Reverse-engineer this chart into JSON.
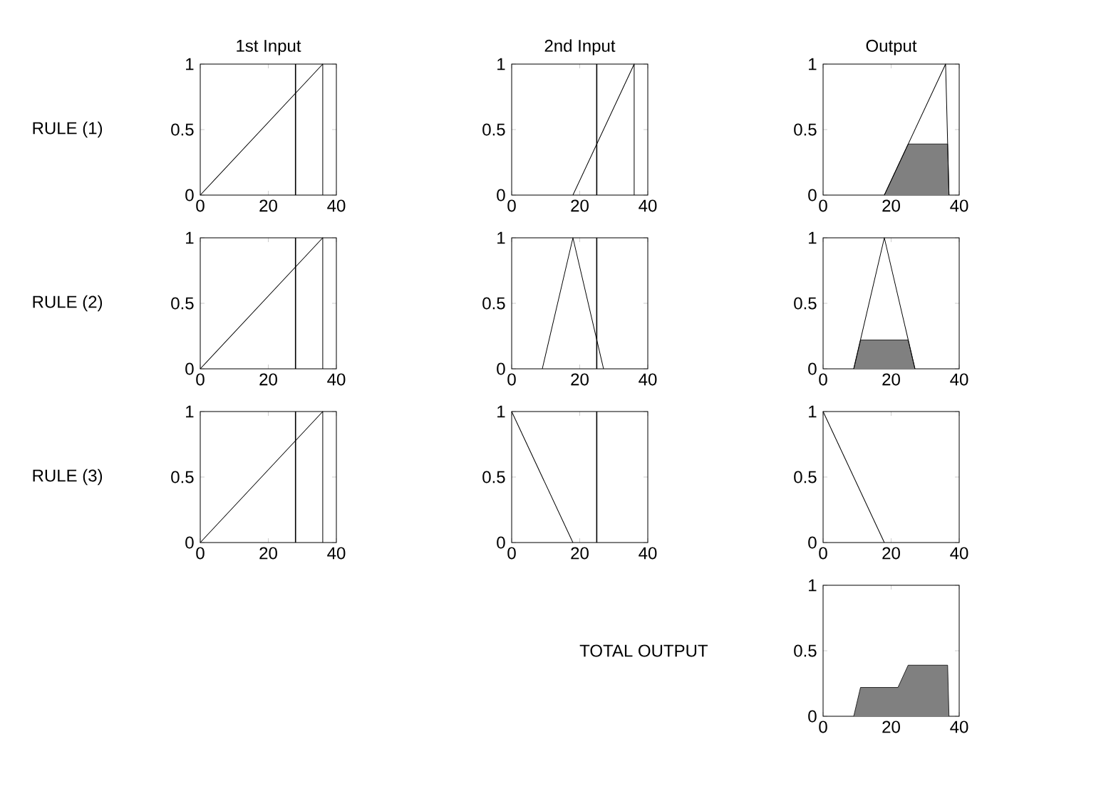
{
  "chart_data": [
    {
      "type": "line",
      "title": "1st Input",
      "annotations": [
        "RULE (1)"
      ],
      "xlim": [
        0,
        40
      ],
      "ylim": [
        0,
        1
      ],
      "xticks": [
        0,
        20,
        40
      ],
      "yticks": [
        0,
        0.5,
        1
      ],
      "series": [
        {
          "x": [
            0,
            36,
            36
          ],
          "values": [
            0,
            1,
            0
          ],
          "color": "#000000"
        }
      ],
      "ref_lines": [
        {
          "axis": "x",
          "value": 28,
          "color": "#000000"
        }
      ]
    },
    {
      "type": "line",
      "title": "2nd Input",
      "xlim": [
        0,
        40
      ],
      "ylim": [
        0,
        1
      ],
      "xticks": [
        0,
        20,
        40
      ],
      "yticks": [
        0,
        0.5,
        1
      ],
      "series": [
        {
          "x": [
            18,
            36,
            36
          ],
          "values": [
            0,
            1,
            0
          ],
          "color": "#000000"
        }
      ],
      "ref_lines": [
        {
          "axis": "x",
          "value": 25,
          "color": "#000000"
        }
      ]
    },
    {
      "type": "line",
      "title": "Output",
      "xlim": [
        0,
        40
      ],
      "ylim": [
        0,
        1
      ],
      "xticks": [
        0,
        20,
        40
      ],
      "yticks": [
        0,
        0.5,
        1
      ],
      "series": [
        {
          "type": "area",
          "x": [
            18,
            25,
            36.6,
            37
          ],
          "values": [
            0,
            0.39,
            0.39,
            0
          ],
          "color": "#808080"
        },
        {
          "x": [
            18,
            36,
            37
          ],
          "values": [
            0,
            1,
            0
          ],
          "color": "#000000"
        }
      ]
    },
    {
      "type": "line",
      "annotations": [
        "RULE (2)"
      ],
      "xlim": [
        0,
        40
      ],
      "ylim": [
        0,
        1
      ],
      "xticks": [
        0,
        20,
        40
      ],
      "yticks": [
        0,
        0.5,
        1
      ],
      "series": [
        {
          "x": [
            0,
            36,
            36
          ],
          "values": [
            0,
            1,
            0
          ],
          "color": "#000000"
        }
      ],
      "ref_lines": [
        {
          "axis": "x",
          "value": 28,
          "color": "#000000"
        }
      ]
    },
    {
      "type": "line",
      "xlim": [
        0,
        40
      ],
      "ylim": [
        0,
        1
      ],
      "xticks": [
        0,
        20,
        40
      ],
      "yticks": [
        0,
        0.5,
        1
      ],
      "series": [
        {
          "x": [
            9,
            18,
            27
          ],
          "values": [
            0,
            1,
            0
          ],
          "color": "#000000"
        }
      ],
      "ref_lines": [
        {
          "axis": "x",
          "value": 25,
          "color": "#000000"
        }
      ]
    },
    {
      "type": "line",
      "xlim": [
        0,
        40
      ],
      "ylim": [
        0,
        1
      ],
      "xticks": [
        0,
        20,
        40
      ],
      "yticks": [
        0,
        0.5,
        1
      ],
      "series": [
        {
          "type": "area",
          "x": [
            9,
            11,
            25,
            27
          ],
          "values": [
            0,
            0.22,
            0.22,
            0
          ],
          "color": "#808080"
        },
        {
          "x": [
            9,
            18,
            27
          ],
          "values": [
            0,
            1,
            0
          ],
          "color": "#000000"
        }
      ]
    },
    {
      "type": "line",
      "annotations": [
        "RULE (3)"
      ],
      "xlim": [
        0,
        40
      ],
      "ylim": [
        0,
        1
      ],
      "xticks": [
        0,
        20,
        40
      ],
      "yticks": [
        0,
        0.5,
        1
      ],
      "series": [
        {
          "x": [
            0,
            36,
            36
          ],
          "values": [
            0,
            1,
            0
          ],
          "color": "#000000"
        }
      ],
      "ref_lines": [
        {
          "axis": "x",
          "value": 28,
          "color": "#000000"
        }
      ]
    },
    {
      "type": "line",
      "xlim": [
        0,
        40
      ],
      "ylim": [
        0,
        1
      ],
      "xticks": [
        0,
        20,
        40
      ],
      "yticks": [
        0,
        0.5,
        1
      ],
      "series": [
        {
          "x": [
            0,
            18
          ],
          "values": [
            1,
            0
          ],
          "color": "#000000"
        }
      ],
      "ref_lines": [
        {
          "axis": "x",
          "value": 25,
          "color": "#000000"
        }
      ]
    },
    {
      "type": "line",
      "xlim": [
        0,
        40
      ],
      "ylim": [
        0,
        1
      ],
      "xticks": [
        0,
        20,
        40
      ],
      "yticks": [
        0,
        0.5,
        1
      ],
      "series": [
        {
          "x": [
            0,
            18
          ],
          "values": [
            1,
            0
          ],
          "color": "#000000"
        }
      ]
    },
    {
      "type": "area",
      "annotations": [
        "TOTAL OUTPUT"
      ],
      "xlim": [
        0,
        40
      ],
      "ylim": [
        0,
        1
      ],
      "xticks": [
        0,
        20,
        40
      ],
      "yticks": [
        0,
        0.5,
        1
      ],
      "series": [
        {
          "x": [
            9,
            11,
            22,
            25,
            36.6,
            37
          ],
          "values": [
            0,
            0.22,
            0.22,
            0.39,
            0.39,
            0
          ],
          "color": "#808080"
        }
      ]
    }
  ]
}
